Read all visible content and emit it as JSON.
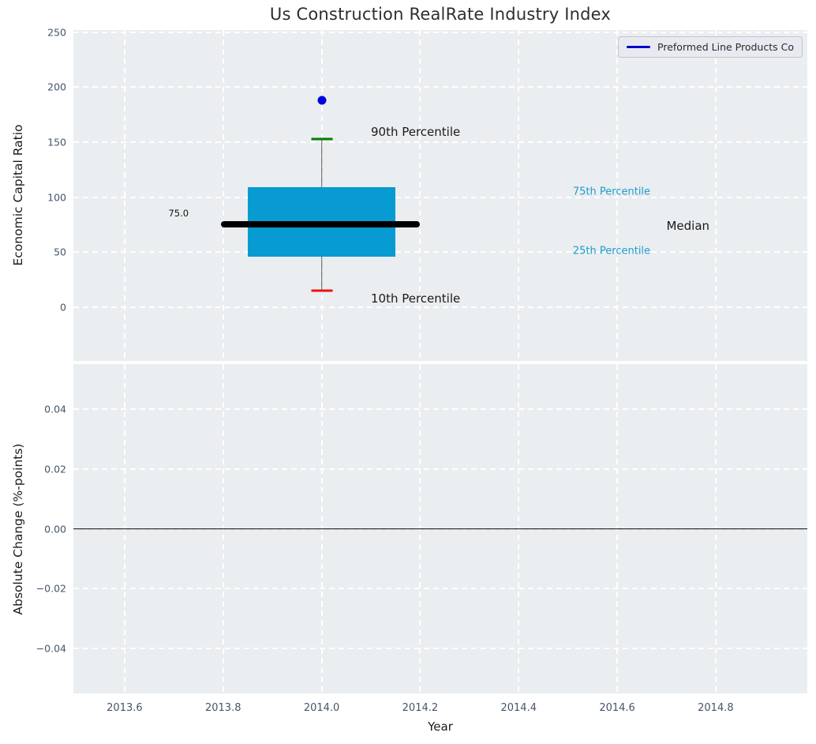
{
  "title": "Us Construction RealRate Industry Index",
  "legend": {
    "label": "Preformed Line Products Co"
  },
  "colors": {
    "plot_bg": "#eaeef0",
    "grid": "#ffffff",
    "box_fill": "#089bd1",
    "median_line": "#000000",
    "whisker": "#555555",
    "cap_90th": "#007f00",
    "cap_10th": "#ee1111",
    "company_point": "#0000dd",
    "legend_line": "#0000cc",
    "tick_label": "#46546a",
    "percentile_side_label": "#1f9bce",
    "zero_line": "#000000"
  },
  "chart_data": [
    {
      "type": "boxplot",
      "ylabel": "Economic Capital Ratio",
      "xlabel": "",
      "xlim": [
        2013.496,
        2014.986
      ],
      "ylim": [
        -49,
        252
      ],
      "x_ticks": [
        2013.6,
        2013.8,
        2014.0,
        2014.2,
        2014.4,
        2014.6,
        2014.8
      ],
      "x_tick_labels": [
        "2013.6",
        "2013.8",
        "2014.0",
        "2014.2",
        "2014.4",
        "2014.6",
        "2014.8"
      ],
      "show_x_tick_labels": false,
      "y_ticks": [
        0,
        50,
        100,
        150,
        200,
        250
      ],
      "y_tick_labels": [
        "0",
        "50",
        "100",
        "150",
        "200",
        "250"
      ],
      "grid": "dashed",
      "legend_position": "upper right",
      "box": {
        "center_x": 2014.0,
        "median": 75.0,
        "q1": 46,
        "q3": 109,
        "p10": 15,
        "p90": 153,
        "box_left": 2013.85,
        "box_right": 2014.15,
        "median_line_left": 2013.795,
        "median_line_right": 2014.2
      },
      "company_point": {
        "label": "Preformed Line Products Co",
        "x": 2014.0,
        "y": 188
      },
      "annotations": [
        {
          "text": "90th Percentile",
          "x": 2014.1,
          "y": 159,
          "anchor": "left",
          "kind": "callout"
        },
        {
          "text": "10th Percentile",
          "x": 2014.1,
          "y": 8,
          "anchor": "left",
          "kind": "callout"
        },
        {
          "text": "75th Percentile",
          "x": 2014.51,
          "y": 105,
          "anchor": "left",
          "kind": "percentile"
        },
        {
          "text": "25th Percentile",
          "x": 2014.51,
          "y": 51,
          "anchor": "left",
          "kind": "percentile"
        },
        {
          "text": "Median",
          "x": 2014.7,
          "y": 74,
          "anchor": "left",
          "kind": "callout"
        },
        {
          "text": "75.0",
          "x": 2013.73,
          "y": 85,
          "anchor": "right",
          "kind": "value"
        }
      ]
    },
    {
      "type": "line",
      "ylabel": "Absolute Change (%-points)",
      "xlabel": "Year",
      "xlim": [
        2013.496,
        2014.986
      ],
      "ylim": [
        -0.0552,
        0.0552
      ],
      "x_ticks": [
        2013.6,
        2013.8,
        2014.0,
        2014.2,
        2014.4,
        2014.6,
        2014.8
      ],
      "x_tick_labels": [
        "2013.6",
        "2013.8",
        "2014.0",
        "2014.2",
        "2014.4",
        "2014.6",
        "2014.8"
      ],
      "show_x_tick_labels": true,
      "y_ticks": [
        0.04,
        0.02,
        0.0,
        -0.02,
        -0.04
      ],
      "y_tick_labels": [
        "0.04",
        "0.02",
        "0.00",
        "−0.02",
        "−0.04"
      ],
      "grid": "dashed",
      "zero_line": 0.0,
      "series": []
    }
  ]
}
